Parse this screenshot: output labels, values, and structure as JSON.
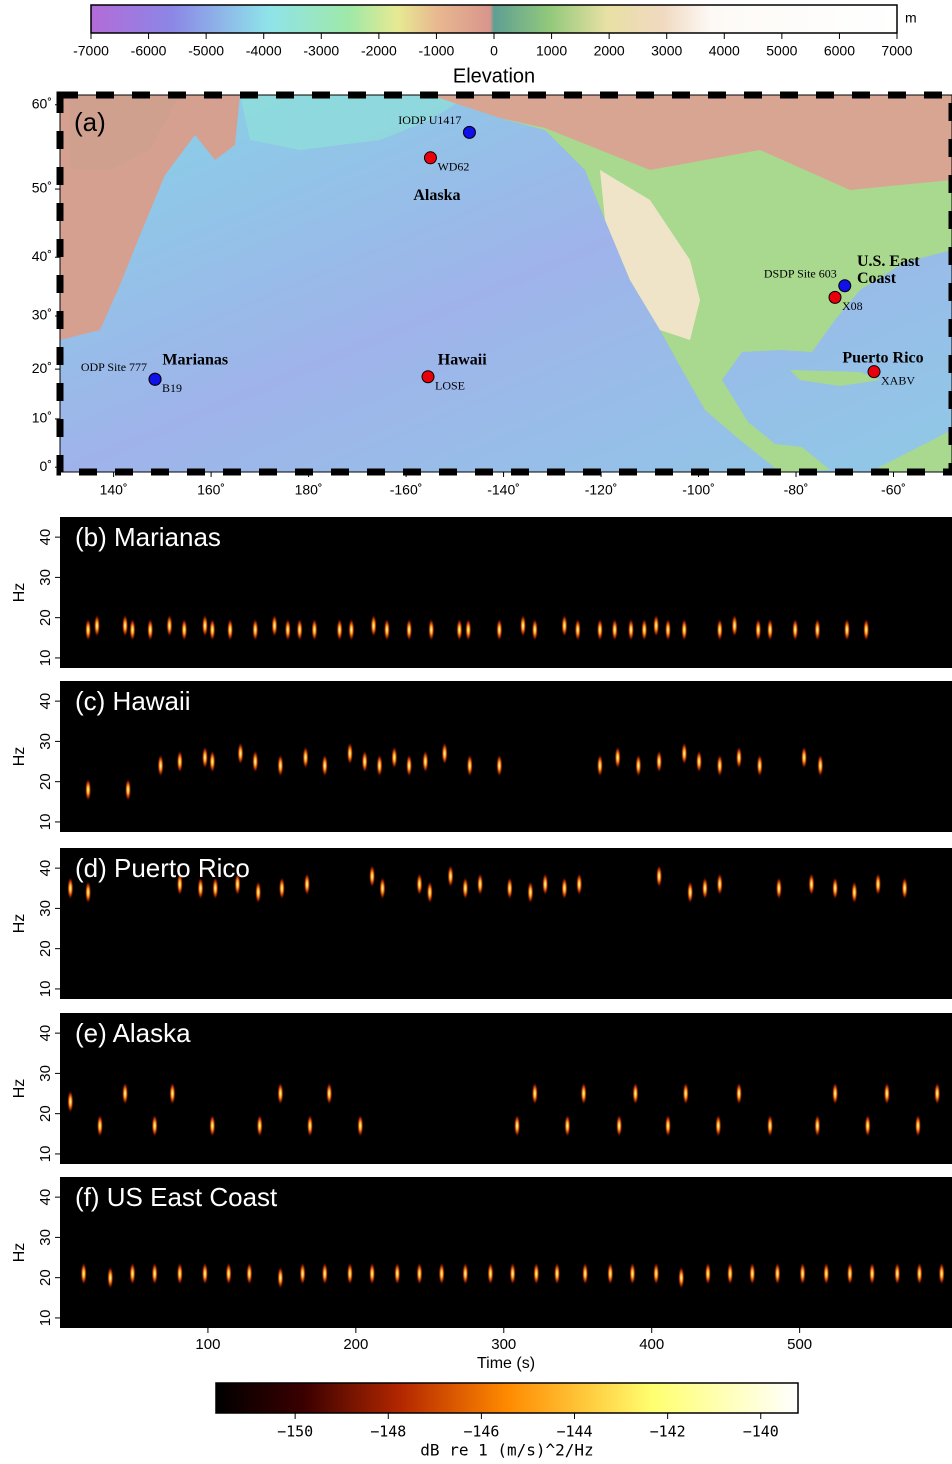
{
  "chart_data": [
    {
      "type": "colorbar",
      "label": "Elevation",
      "unit": "m",
      "colormap": "elevation",
      "xlim": [
        -7000,
        7000
      ],
      "xticks": [
        -7000,
        -6000,
        -5000,
        -4000,
        -3000,
        -2000,
        -1000,
        0,
        1000,
        2000,
        3000,
        4000,
        5000,
        6000,
        7000
      ]
    },
    {
      "type": "map",
      "panel": "(a)",
      "xlim": [
        129,
        -48
      ],
      "ylim": [
        -1,
        61
      ],
      "xticks": [
        {
          "value": 140,
          "label": "140˚"
        },
        {
          "value": 160,
          "label": "160˚"
        },
        {
          "value": 180,
          "label": "180˚"
        },
        {
          "value": -160,
          "label": "-160˚"
        },
        {
          "value": -140,
          "label": "-140˚"
        },
        {
          "value": -120,
          "label": "-120˚"
        },
        {
          "value": -100,
          "label": "-100˚"
        },
        {
          "value": -80,
          "label": "-80˚"
        },
        {
          "value": -60,
          "label": "-60˚"
        }
      ],
      "yticks": [
        {
          "value": 0,
          "label": "0˚"
        },
        {
          "value": 10,
          "label": "10˚"
        },
        {
          "value": 20,
          "label": "20˚"
        },
        {
          "value": 30,
          "label": "30˚"
        },
        {
          "value": 40,
          "label": "40˚"
        },
        {
          "value": 50,
          "label": "50˚"
        },
        {
          "value": 60,
          "label": "60˚"
        }
      ],
      "sites": [
        {
          "name": "B19",
          "lon": 148.5,
          "lat": 18,
          "color": "#e8000b"
        },
        {
          "name": "ODP Site 777",
          "lon": 148.5,
          "lat": 18,
          "color": "#1010e8"
        },
        {
          "name": "LOSE",
          "lon": -155.5,
          "lat": 18.5,
          "color": "#e8000b"
        },
        {
          "name": "WD62",
          "lon": -155,
          "lat": 54,
          "color": "#e8000b"
        },
        {
          "name": "IODP U1417",
          "lon": -147,
          "lat": 57,
          "color": "#1010e8"
        },
        {
          "name": "DSDP Site 603",
          "lon": -70,
          "lat": 35.3,
          "color": "#1010e8"
        },
        {
          "name": "X08",
          "lon": -72,
          "lat": 33.3,
          "color": "#e8000b"
        },
        {
          "name": "XABV",
          "lon": -64,
          "lat": 19.5,
          "color": "#e8000b"
        }
      ],
      "regions": [
        {
          "lines": [
            "Marianas"
          ],
          "lon": 150,
          "lat": 21.6
        },
        {
          "lines": [
            "Hawaii"
          ],
          "lon": -153.5,
          "lat": 21.6
        },
        {
          "lines": [
            "Alaska"
          ],
          "lon": -158.5,
          "lat": 49
        },
        {
          "lines": [
            "U.S. East",
            "Coast"
          ],
          "lon": -67.5,
          "lat": 39.2
        },
        {
          "lines": [
            "Puerto Rico"
          ],
          "lon": -70.5,
          "lat": 22
        }
      ]
    },
    {
      "type": "spectrogram",
      "title": "(b) Marianas",
      "ylabel": "Hz",
      "xlim": [
        0,
        603
      ],
      "ylim": [
        7.5,
        45
      ],
      "yticks": [
        10,
        20,
        30,
        40
      ],
      "calls": {
        "x": [
          19,
          25,
          44,
          49,
          61,
          74,
          84,
          98,
          103,
          115,
          132,
          145,
          154,
          162,
          172,
          189,
          197,
          212,
          221,
          236,
          251,
          270,
          276,
          297,
          313,
          321,
          341,
          350,
          365,
          375,
          386,
          395,
          403,
          411,
          422,
          446,
          456,
          472,
          480,
          497,
          512,
          532,
          545
        ],
        "y": [
          17,
          18,
          18,
          17,
          17,
          18,
          17,
          18,
          17,
          17,
          17,
          18,
          17,
          17,
          17,
          17,
          17,
          18,
          17,
          17,
          17,
          17,
          17,
          17,
          18,
          17,
          18,
          17,
          17,
          17,
          17,
          17,
          18,
          17,
          17,
          17,
          18,
          17,
          17,
          17,
          17,
          17,
          17
        ]
      }
    },
    {
      "type": "spectrogram",
      "title": "(c) Hawaii",
      "ylabel": "Hz",
      "xlim": [
        0,
        603
      ],
      "ylim": [
        7.5,
        45
      ],
      "yticks": [
        10,
        20,
        30,
        40
      ],
      "calls": {
        "x": [
          19,
          46,
          68,
          81,
          98,
          103,
          122,
          132,
          149,
          166,
          179,
          196,
          206,
          216,
          226,
          236,
          247,
          260,
          277,
          297,
          365,
          377,
          391,
          405,
          422,
          432,
          446,
          459,
          473,
          503,
          514
        ],
        "y": [
          18,
          18,
          24,
          25,
          26,
          25,
          27,
          25,
          24,
          26,
          24,
          27,
          25,
          24,
          26,
          24,
          25,
          27,
          24,
          24,
          24,
          26,
          24,
          25,
          27,
          25,
          24,
          26,
          24,
          26,
          24
        ]
      }
    },
    {
      "type": "spectrogram",
      "title": "(d) Puerto Rico",
      "ylabel": "Hz",
      "xlim": [
        0,
        603
      ],
      "ylim": [
        7.5,
        45
      ],
      "yticks": [
        10,
        20,
        30,
        40
      ],
      "calls": {
        "x": [
          7,
          19,
          81,
          95,
          105,
          120,
          134,
          150,
          167,
          211,
          218,
          243,
          250,
          264,
          274,
          284,
          304,
          318,
          328,
          341,
          351,
          405,
          426,
          436,
          446,
          486,
          508,
          524,
          537,
          553,
          571
        ],
        "y": [
          35,
          34,
          36,
          35,
          35,
          36,
          34,
          35,
          36,
          38,
          35,
          36,
          34,
          38,
          35,
          36,
          35,
          34,
          36,
          35,
          36,
          38,
          34,
          35,
          36,
          35,
          36,
          35,
          34,
          36,
          35
        ]
      }
    },
    {
      "type": "spectrogram",
      "title": "(e) Alaska",
      "ylabel": "Hz",
      "xlim": [
        0,
        603
      ],
      "ylim": [
        7.5,
        45
      ],
      "yticks": [
        10,
        20,
        30,
        40
      ],
      "calls": {
        "x": [
          7,
          27,
          44,
          64,
          76,
          103,
          135,
          149,
          169,
          182,
          203,
          309,
          321,
          343,
          354,
          378,
          389,
          411,
          423,
          445,
          459,
          480,
          512,
          524,
          546,
          559,
          580,
          593
        ],
        "y": [
          23,
          17,
          25,
          17,
          25,
          17,
          17,
          25,
          17,
          25,
          17,
          17,
          25,
          17,
          25,
          17,
          25,
          17,
          25,
          17,
          25,
          17,
          17,
          25,
          17,
          25,
          17,
          25
        ]
      }
    },
    {
      "type": "spectrogram",
      "title": "(f) US East Coast",
      "ylabel": "Hz",
      "xlabel": "Time (s)",
      "xlim": [
        0,
        603
      ],
      "ylim": [
        7.5,
        45
      ],
      "yticks": [
        10,
        20,
        30,
        40
      ],
      "xticks": [
        100,
        200,
        300,
        400,
        500
      ],
      "calls": {
        "x": [
          16,
          34,
          49,
          64,
          81,
          98,
          114,
          128,
          149,
          164,
          179,
          196,
          211,
          228,
          243,
          258,
          274,
          291,
          306,
          322,
          336,
          355,
          372,
          387,
          403,
          420,
          438,
          453,
          468,
          485,
          502,
          518,
          534,
          549,
          566,
          581,
          596
        ],
        "y": [
          21,
          20,
          21,
          21,
          21,
          21,
          21,
          21,
          20,
          21,
          21,
          21,
          21,
          21,
          21,
          21,
          21,
          21,
          21,
          21,
          21,
          21,
          21,
          21,
          21,
          20,
          21,
          21,
          21,
          21,
          21,
          21,
          21,
          21,
          21,
          21,
          21
        ]
      }
    },
    {
      "type": "colorbar",
      "label": "dB re 1 (m/s)^2/Hz",
      "colormap": "heat",
      "xlim": [
        -151.7,
        -139.2
      ],
      "xticks": [
        {
          "value": -150,
          "label": "−150"
        },
        {
          "value": -148,
          "label": "−148"
        },
        {
          "value": -146,
          "label": "−146"
        },
        {
          "value": -144,
          "label": "−144"
        },
        {
          "value": -142,
          "label": "−142"
        },
        {
          "value": -140,
          "label": "−140"
        }
      ]
    }
  ]
}
